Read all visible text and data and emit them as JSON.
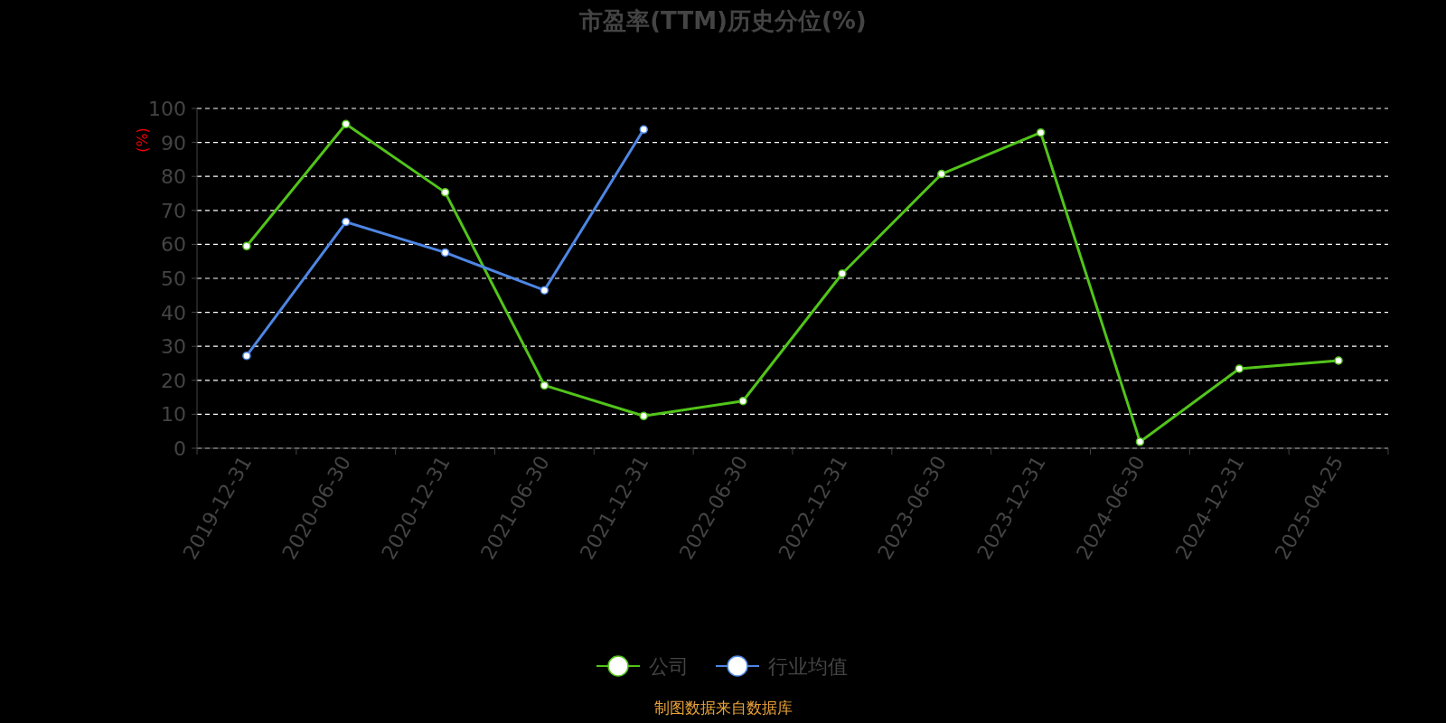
{
  "chart_data": {
    "type": "line",
    "title": "市盈率(TTM)历史分位(%)",
    "ylabel": "(%)",
    "categories": [
      "2019-12-31",
      "2020-06-30",
      "2020-12-31",
      "2021-06-30",
      "2021-12-31",
      "2022-06-30",
      "2022-12-31",
      "2023-06-30",
      "2023-12-31",
      "2024-06-30",
      "2024-12-31",
      "2025-04-25"
    ],
    "series": [
      {
        "name": "公司",
        "color": "#52c41a",
        "values": [
          59.5,
          95.4,
          75.3,
          18.5,
          9.5,
          13.9,
          51.4,
          80.7,
          92.9,
          1.9,
          23.4,
          25.8
        ]
      },
      {
        "name": "行业均值",
        "color": "#4e86e4",
        "values": [
          27.2,
          66.6,
          57.6,
          46.5,
          93.8,
          null,
          null,
          null,
          null,
          null,
          null,
          null
        ]
      }
    ],
    "ylim": [
      0,
      100
    ],
    "yticks": [
      0,
      10,
      20,
      30,
      40,
      50,
      60,
      70,
      80,
      90,
      100
    ],
    "grid": "y",
    "legend": "bottom",
    "marker": "circle",
    "line_style": "solid",
    "annotations": [
      "制图数据来自数据库"
    ]
  }
}
